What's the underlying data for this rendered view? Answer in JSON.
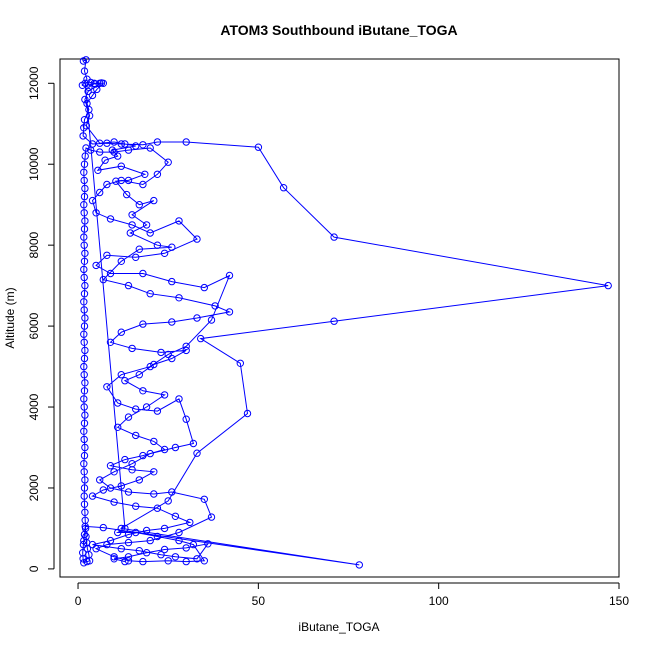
{
  "chart_data": {
    "type": "line",
    "title": "ATOM3 Southbound iButane_TOGA",
    "xlabel": "iButane_TOGA",
    "ylabel": "Altitude (m)",
    "xlim": [
      -5,
      150
    ],
    "ylim": [
      -200,
      12600
    ],
    "x_ticks": [
      0,
      50,
      100,
      150
    ],
    "y_ticks": [
      0,
      2000,
      4000,
      6000,
      8000,
      10000,
      12000
    ],
    "series_color": "#0000ff",
    "marker": "open-circle",
    "series": [
      {
        "points": [
          [
            1.5,
            12550
          ],
          [
            2.2,
            12580
          ],
          [
            1.8,
            12300
          ],
          [
            2.5,
            12100
          ],
          [
            1.2,
            11950
          ],
          [
            3.0,
            11900
          ],
          [
            4.5,
            12000
          ],
          [
            6.0,
            12000
          ],
          [
            7.0,
            12000
          ],
          [
            5.2,
            11850
          ],
          [
            4.0,
            11700
          ],
          [
            2.5,
            11500
          ],
          [
            3.0,
            11350
          ],
          [
            1.8,
            11100
          ],
          [
            1.6,
            10900
          ],
          [
            1.4,
            10700
          ],
          [
            4.0,
            10500
          ],
          [
            8.0,
            10520
          ],
          [
            12.0,
            10500
          ],
          [
            18.0,
            10480
          ],
          [
            22.0,
            10550
          ],
          [
            30.0,
            10550
          ],
          [
            50.0,
            10420
          ],
          [
            57.0,
            9420
          ],
          [
            71.0,
            8200
          ],
          [
            147.0,
            7000
          ],
          [
            71.0,
            6120
          ],
          [
            34.0,
            5690
          ],
          [
            45.0,
            5080
          ],
          [
            47.0,
            3840
          ],
          [
            33.0,
            2860
          ],
          [
            25.0,
            1680
          ],
          [
            12.0,
            1000
          ],
          [
            78.0,
            100
          ],
          [
            7.0,
            1020
          ],
          [
            2.0,
            1050
          ],
          [
            1.8,
            850
          ],
          [
            1.6,
            700
          ],
          [
            1.5,
            600
          ],
          [
            1.3,
            400
          ],
          [
            1.4,
            250
          ],
          [
            1.6,
            150
          ],
          [
            2.5,
            180
          ],
          [
            3.2,
            200
          ],
          [
            3.0,
            350
          ],
          [
            2.6,
            500
          ],
          [
            2.4,
            650
          ],
          [
            2.2,
            800
          ],
          [
            2.1,
            1000
          ],
          [
            2.0,
            1200
          ],
          [
            1.9,
            1400
          ],
          [
            1.8,
            1600
          ],
          [
            1.7,
            1800
          ],
          [
            1.8,
            2000
          ],
          [
            1.9,
            2200
          ],
          [
            1.7,
            2400
          ],
          [
            1.6,
            2600
          ],
          [
            1.8,
            2800
          ],
          [
            1.9,
            3000
          ],
          [
            1.7,
            3200
          ],
          [
            1.6,
            3400
          ],
          [
            1.8,
            3600
          ],
          [
            1.9,
            3800
          ],
          [
            1.7,
            4000
          ],
          [
            1.6,
            4200
          ],
          [
            1.8,
            4400
          ],
          [
            1.9,
            4600
          ],
          [
            1.7,
            4800
          ],
          [
            1.6,
            5000
          ],
          [
            1.8,
            5200
          ],
          [
            1.9,
            5400
          ],
          [
            1.7,
            5600
          ],
          [
            1.6,
            5800
          ],
          [
            1.8,
            6000
          ],
          [
            1.9,
            6200
          ],
          [
            1.7,
            6400
          ],
          [
            1.6,
            6600
          ],
          [
            1.8,
            6800
          ],
          [
            1.9,
            7000
          ],
          [
            1.7,
            7200
          ],
          [
            1.6,
            7400
          ],
          [
            1.8,
            7600
          ],
          [
            1.9,
            7800
          ],
          [
            1.7,
            8000
          ],
          [
            1.6,
            8200
          ],
          [
            1.8,
            8400
          ],
          [
            1.9,
            8600
          ],
          [
            1.7,
            8800
          ],
          [
            1.6,
            9000
          ],
          [
            1.8,
            9200
          ],
          [
            1.9,
            9400
          ],
          [
            1.7,
            9600
          ],
          [
            1.6,
            9800
          ],
          [
            1.8,
            10000
          ],
          [
            2.0,
            10200
          ],
          [
            2.2,
            10400
          ],
          [
            3.5,
            10350
          ],
          [
            6.0,
            10300
          ],
          [
            10.0,
            10300
          ],
          [
            14.0,
            10350
          ],
          [
            20.0,
            10400
          ],
          [
            25.0,
            10050
          ],
          [
            22.0,
            9750
          ],
          [
            18.0,
            9500
          ],
          [
            12.0,
            9600
          ],
          [
            8.0,
            9500
          ],
          [
            6.0,
            9300
          ],
          [
            4.0,
            9100
          ],
          [
            5.0,
            8800
          ],
          [
            9.0,
            8650
          ],
          [
            15.0,
            8500
          ],
          [
            20.0,
            8300
          ],
          [
            28.0,
            8600
          ],
          [
            33.0,
            8150
          ],
          [
            24.0,
            7800
          ],
          [
            16.0,
            7700
          ],
          [
            8.0,
            7750
          ],
          [
            5.0,
            7500
          ],
          [
            9.0,
            7300
          ],
          [
            18.0,
            7300
          ],
          [
            26.0,
            7100
          ],
          [
            35.0,
            6950
          ],
          [
            42.0,
            7250
          ],
          [
            37.0,
            6150
          ],
          [
            30.0,
            5500
          ],
          [
            25.0,
            5300
          ],
          [
            20.0,
            5000
          ],
          [
            12.0,
            4800
          ],
          [
            8.0,
            4500
          ],
          [
            11.0,
            4100
          ],
          [
            16.0,
            3950
          ],
          [
            22.0,
            3900
          ],
          [
            28.0,
            4200
          ],
          [
            30.0,
            3700
          ],
          [
            32.0,
            3100
          ],
          [
            27.0,
            3000
          ],
          [
            20.0,
            2850
          ],
          [
            15.0,
            2600
          ],
          [
            10.0,
            2400
          ],
          [
            6.0,
            2200
          ],
          [
            9.0,
            2000
          ],
          [
            14.0,
            1900
          ],
          [
            21.0,
            1850
          ],
          [
            26.0,
            1900
          ],
          [
            35.0,
            1720
          ],
          [
            37.0,
            1280
          ],
          [
            28.0,
            900
          ],
          [
            20.0,
            700
          ],
          [
            14.0,
            650
          ],
          [
            8.0,
            600
          ],
          [
            5.0,
            500
          ],
          [
            10.0,
            300
          ],
          [
            14.0,
            200
          ],
          [
            18.0,
            180
          ],
          [
            25.0,
            200
          ],
          [
            30.0,
            180
          ],
          [
            35.0,
            200
          ],
          [
            32.0,
            600
          ],
          [
            28.0,
            700
          ],
          [
            22.0,
            800
          ],
          [
            16.0,
            900
          ],
          [
            11.0,
            900
          ],
          [
            13.0,
            1000
          ],
          [
            2.0,
            12000
          ],
          [
            3.5,
            12020
          ],
          [
            4.8,
            11980
          ],
          [
            6.5,
            12010
          ],
          [
            2.8,
            11800
          ],
          [
            1.9,
            11600
          ],
          [
            3.2,
            11200
          ],
          [
            2.3,
            10950
          ],
          [
            6.0,
            10520
          ],
          [
            10.0,
            10550
          ],
          [
            13.0,
            10500
          ],
          [
            16.0,
            10450
          ],
          [
            9.5,
            10350
          ],
          [
            11.0,
            10200
          ],
          [
            7.5,
            10100
          ],
          [
            5.5,
            9850
          ],
          [
            12.0,
            9950
          ],
          [
            18.5,
            9750
          ],
          [
            14.0,
            9600
          ],
          [
            10.5,
            9580
          ],
          [
            13.5,
            9250
          ],
          [
            17.0,
            9000
          ],
          [
            21.0,
            9100
          ],
          [
            15.0,
            8750
          ],
          [
            19.0,
            8500
          ],
          [
            14.5,
            8300
          ],
          [
            22.0,
            8000
          ],
          [
            26.0,
            7950
          ],
          [
            17.0,
            7900
          ],
          [
            12.0,
            7600
          ],
          [
            7.0,
            7150
          ],
          [
            14.0,
            7000
          ],
          [
            20.0,
            6800
          ],
          [
            28.0,
            6700
          ],
          [
            38.0,
            6500
          ],
          [
            42.0,
            6350
          ],
          [
            33.0,
            6200
          ],
          [
            26.0,
            6100
          ],
          [
            18.0,
            6050
          ],
          [
            12.0,
            5850
          ],
          [
            9.0,
            5600
          ],
          [
            15.0,
            5450
          ],
          [
            23.0,
            5350
          ],
          [
            30.0,
            5400
          ],
          [
            26.0,
            5200
          ],
          [
            21.0,
            5050
          ],
          [
            17.0,
            4800
          ],
          [
            13.0,
            4650
          ],
          [
            18.0,
            4400
          ],
          [
            24.0,
            4300
          ],
          [
            19.0,
            4000
          ],
          [
            14.0,
            3750
          ],
          [
            11.0,
            3500
          ],
          [
            16.0,
            3300
          ],
          [
            21.0,
            3150
          ],
          [
            24.0,
            2950
          ],
          [
            18.0,
            2800
          ],
          [
            13.0,
            2700
          ],
          [
            9.0,
            2550
          ],
          [
            15.0,
            2450
          ],
          [
            21.0,
            2400
          ],
          [
            17.0,
            2200
          ],
          [
            12.0,
            2050
          ],
          [
            7.0,
            1950
          ],
          [
            4.0,
            1800
          ],
          [
            10.0,
            1650
          ],
          [
            16.0,
            1550
          ],
          [
            22.0,
            1500
          ],
          [
            27.0,
            1300
          ],
          [
            31.0,
            1150
          ],
          [
            24.0,
            1000
          ],
          [
            19.0,
            950
          ],
          [
            14.0,
            850
          ],
          [
            9.0,
            700
          ],
          [
            4.0,
            600
          ],
          [
            12.0,
            500
          ],
          [
            17.0,
            450
          ],
          [
            23.0,
            350
          ],
          [
            27.0,
            300
          ],
          [
            33.0,
            250
          ],
          [
            36.0,
            620
          ],
          [
            30.0,
            520
          ],
          [
            24.0,
            480
          ],
          [
            19.0,
            400
          ],
          [
            14.0,
            300
          ],
          [
            10.0,
            250
          ],
          [
            13.0,
            180
          ]
        ]
      }
    ]
  }
}
